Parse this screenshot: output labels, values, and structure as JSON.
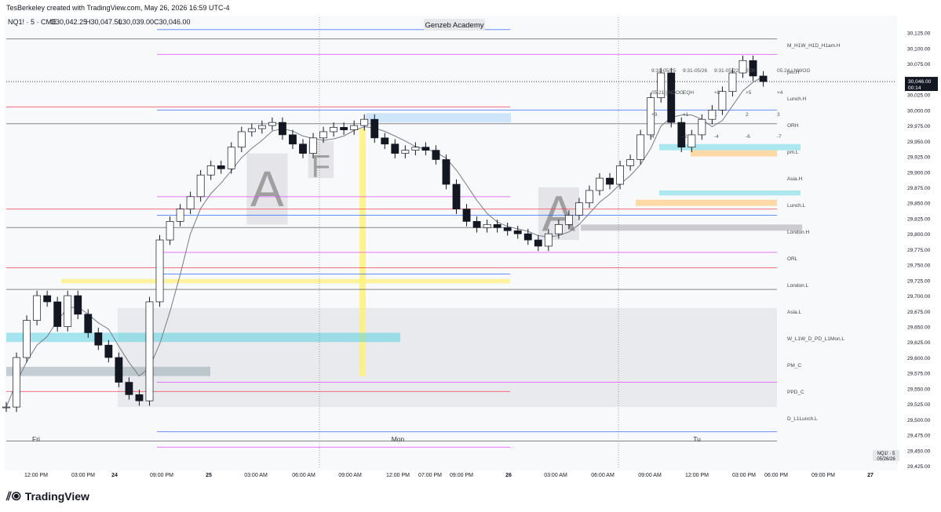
{
  "header": {
    "creator_line": "TesBerkeley created with TradingView.com, May 26, 2026 16:59 UTC-4",
    "symbol_line": "NQ1! · 5 · CME",
    "ohlc": {
      "o": "O30,042.25",
      "h": "H30,047.50",
      "l": "L30,039.00",
      "c": "C30,046.00"
    }
  },
  "watermark_label": "Genzeb Academy",
  "footer": {
    "brand": "TradingView",
    "brand_icon": "tradingview-logo-icon"
  },
  "colors": {
    "line": "#131722",
    "ma": "#787b86",
    "accent_blue": "#2962ff",
    "cyan_zone": "#4dd0e1",
    "yellow_zone": "#fff176",
    "orange_zone": "#ffcc80",
    "magenta": "#e040fb",
    "gray_zone": "#cfcfd4",
    "red_label": "#f23645"
  },
  "chart_data": {
    "type": "line",
    "symbol": "NQ1!",
    "interval": "5",
    "y_axis": {
      "ticks": [
        "30,125.00",
        "30,100.00",
        "30,075.00",
        "30,050.00",
        "30,025.00",
        "30,000.00",
        "29,975.00",
        "29,950.00",
        "29,925.00",
        "29,900.00",
        "29,875.00",
        "29,850.00",
        "29,825.00",
        "29,800.00",
        "29,775.00",
        "29,750.00",
        "29,725.00",
        "29,700.00",
        "29,675.00",
        "29,650.00",
        "29,625.00",
        "29,600.00",
        "29,575.00",
        "29,550.00",
        "29,525.00",
        "29,500.00",
        "29,475.00",
        "29,450.00",
        "29,425.00"
      ],
      "range": [
        29420,
        30150
      ],
      "grid": false
    },
    "x_axis": {
      "ticks": [
        "12:00 PM",
        "03:00 PM",
        "24",
        "09:00 PM",
        "25",
        "03:00 AM",
        "06:00 AM",
        "09:00 AM",
        "12:00 PM",
        "07:00 PM",
        "09:00 PM",
        "26",
        "03:00 AM",
        "06:00 AM",
        "09:00 AM",
        "12:00 PM",
        "03:00 PM",
        "06:00 PM",
        "09:00 PM",
        "27"
      ]
    },
    "day_labels": [
      "Fri",
      "Mon",
      "Tu"
    ],
    "last_price_label": "30,046.00",
    "countdown_label": "00:14",
    "price_series": [
      [
        0,
        29520
      ],
      [
        1,
        29600
      ],
      [
        2,
        29660
      ],
      [
        3,
        29700
      ],
      [
        4,
        29690
      ],
      [
        5,
        29650
      ],
      [
        6,
        29700
      ],
      [
        7,
        29670
      ],
      [
        8,
        29640
      ],
      [
        9,
        29620
      ],
      [
        10,
        29600
      ],
      [
        11,
        29560
      ],
      [
        12,
        29540
      ],
      [
        13,
        29530
      ],
      [
        14,
        29690
      ],
      [
        15,
        29790
      ],
      [
        16,
        29820
      ],
      [
        17,
        29840
      ],
      [
        18,
        29860
      ],
      [
        19,
        29895
      ],
      [
        20,
        29910
      ],
      [
        21,
        29905
      ],
      [
        22,
        29940
      ],
      [
        23,
        29965
      ],
      [
        24,
        29970
      ],
      [
        25,
        29975
      ],
      [
        26,
        29980
      ],
      [
        27,
        29960
      ],
      [
        28,
        29945
      ],
      [
        29,
        29930
      ],
      [
        30,
        29955
      ],
      [
        31,
        29965
      ],
      [
        32,
        29972
      ],
      [
        33,
        29968
      ],
      [
        34,
        29975
      ],
      [
        35,
        29985
      ],
      [
        36,
        29955
      ],
      [
        37,
        29945
      ],
      [
        38,
        29930
      ],
      [
        39,
        29935
      ],
      [
        40,
        29940
      ],
      [
        41,
        29935
      ],
      [
        42,
        29920
      ],
      [
        43,
        29880
      ],
      [
        44,
        29840
      ],
      [
        45,
        29820
      ],
      [
        46,
        29810
      ],
      [
        47,
        29815
      ],
      [
        48,
        29810
      ],
      [
        49,
        29805
      ],
      [
        50,
        29800
      ],
      [
        51,
        29790
      ],
      [
        52,
        29780
      ],
      [
        53,
        29800
      ],
      [
        54,
        29815
      ],
      [
        55,
        29830
      ],
      [
        56,
        29850
      ],
      [
        57,
        29870
      ],
      [
        58,
        29890
      ],
      [
        59,
        29880
      ],
      [
        60,
        29910
      ],
      [
        61,
        29920
      ],
      [
        62,
        29960
      ],
      [
        63,
        30020
      ],
      [
        64,
        30060
      ],
      [
        65,
        29980
      ],
      [
        66,
        29940
      ],
      [
        67,
        29960
      ],
      [
        68,
        29985
      ],
      [
        69,
        30000
      ],
      [
        70,
        30030
      ],
      [
        71,
        30060
      ],
      [
        72,
        30080
      ],
      [
        73,
        30055
      ],
      [
        74,
        30046
      ]
    ],
    "series": [
      {
        "values_from": "price_series",
        "style": "candles"
      },
      {
        "values_from": "price_series",
        "style": "moving-average"
      }
    ],
    "zones": [
      {
        "label": "A",
        "x": [
          23.5,
          27.5
        ],
        "y": [
          29815,
          29930
        ]
      },
      {
        "label": "F",
        "x": [
          29.5,
          32.0
        ],
        "y": [
          29890,
          29950
        ]
      },
      {
        "label": "A",
        "x": [
          52.0,
          56.0
        ],
        "y": [
          29790,
          29875
        ]
      }
    ],
    "horizontal_levels": [
      {
        "label": "M_H1W_H1D_H1am.H"
      },
      {
        "label": "pm.H"
      },
      {
        "label": "Lunch.H"
      },
      {
        "label": "ORH"
      },
      {
        "label": "pm.L"
      },
      {
        "label": "Asia.H"
      },
      {
        "label": "Lunch.L"
      },
      {
        "label": "London.H"
      },
      {
        "label": "ORL"
      },
      {
        "label": "London.L"
      },
      {
        "label": "Asia.L"
      },
      {
        "label": "W_L1W_D_PD_L1Mon.L"
      },
      {
        "label": "PM_C"
      },
      {
        "label": "PPD_C"
      },
      {
        "label": "D_L1Lunch.L"
      }
    ],
    "annotations": [
      "9:31-05/25",
      "9:31-05/26",
      "9:31-05/22",
      "0:00",
      "05.24 | NWOG",
      "05.21 | NDOG",
      "EQH",
      "+8",
      "+5",
      "+4",
      "+3",
      "+1",
      "1",
      "2",
      "3",
      "4",
      "-2",
      "-4",
      "-6",
      "-7"
    ],
    "side_badge": {
      "line1": "NQ1! · 5",
      "line2": "05/26/26"
    }
  }
}
